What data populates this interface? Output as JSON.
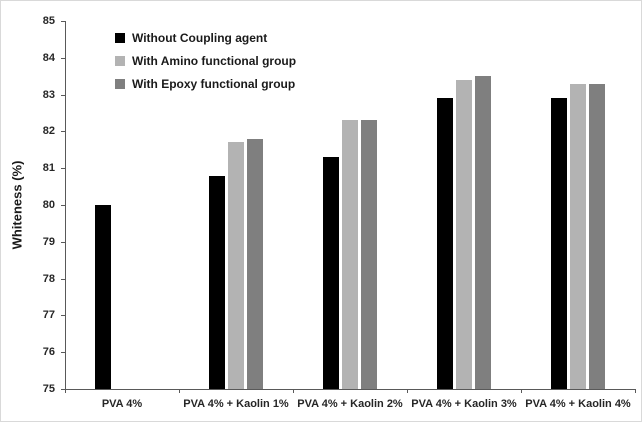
{
  "chart_data": {
    "type": "bar",
    "title": "",
    "xlabel": "",
    "ylabel": "Whiteness (%)",
    "ylim": [
      75,
      85
    ],
    "ytick_step": 1,
    "grid": false,
    "legend_position": "top-left-inside",
    "categories": [
      "PVA 4%",
      "PVA 4% + Kaolin 1%",
      "PVA 4% + Kaolin 2%",
      "PVA 4% + Kaolin 3%",
      "PVA 4% + Kaolin 4%"
    ],
    "series": [
      {
        "name": "Without Coupling agent",
        "color": "#000000",
        "values": [
          80.0,
          80.8,
          81.3,
          82.9,
          82.9
        ]
      },
      {
        "name": "With Amino functional group",
        "color": "#b3b3b3",
        "values": [
          null,
          81.7,
          82.3,
          83.4,
          83.3
        ]
      },
      {
        "name": "With Epoxy functional group",
        "color": "#7f7f7f",
        "values": [
          null,
          81.8,
          82.3,
          83.5,
          83.3
        ]
      }
    ],
    "colors": {
      "axis": "#595959",
      "text": "#262626",
      "background": "#ffffff"
    }
  }
}
